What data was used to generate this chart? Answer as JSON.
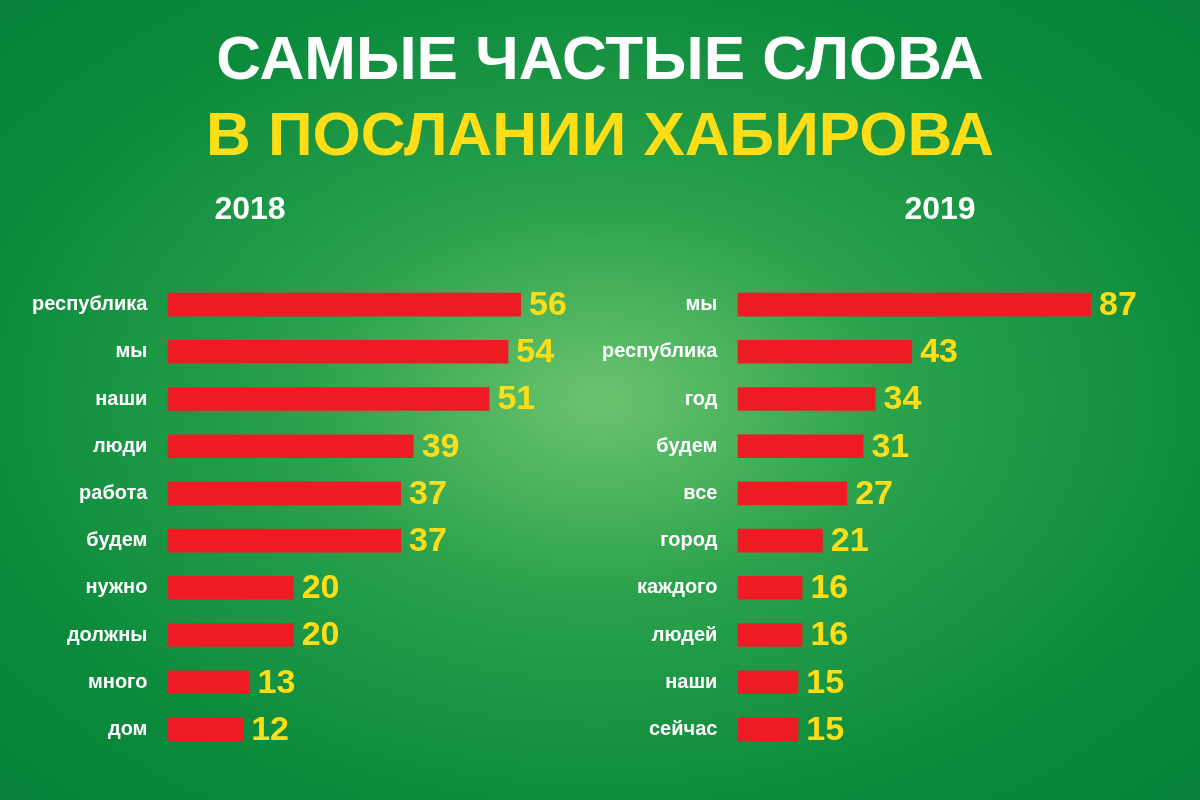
{
  "chart_data": [
    {
      "type": "bar",
      "orientation": "horizontal",
      "title": "САМЫЕ ЧАСТЫЕ СЛОВА",
      "subtitle": "В ПОСЛАНИИ ХАБИРОВА",
      "annotations": [
        "2018"
      ],
      "categories": [
        "республика",
        "мы",
        "наши",
        "люди",
        "работа",
        "будем",
        "нужно",
        "должны",
        "много",
        "дом"
      ],
      "values": [
        56,
        54,
        51,
        39,
        37,
        37,
        20,
        20,
        13,
        12
      ],
      "color": "#ed1c24",
      "data_labels": true
    },
    {
      "type": "bar",
      "orientation": "horizontal",
      "annotations": [
        "2019"
      ],
      "categories": [
        "мы",
        "республика",
        "год",
        "будем",
        "все",
        "город",
        "каждого",
        "людей",
        "наши",
        "сейчас"
      ],
      "values": [
        87,
        43,
        34,
        31,
        27,
        21,
        16,
        16,
        15,
        15
      ],
      "color": "#ed1c24",
      "data_labels": true
    }
  ]
}
